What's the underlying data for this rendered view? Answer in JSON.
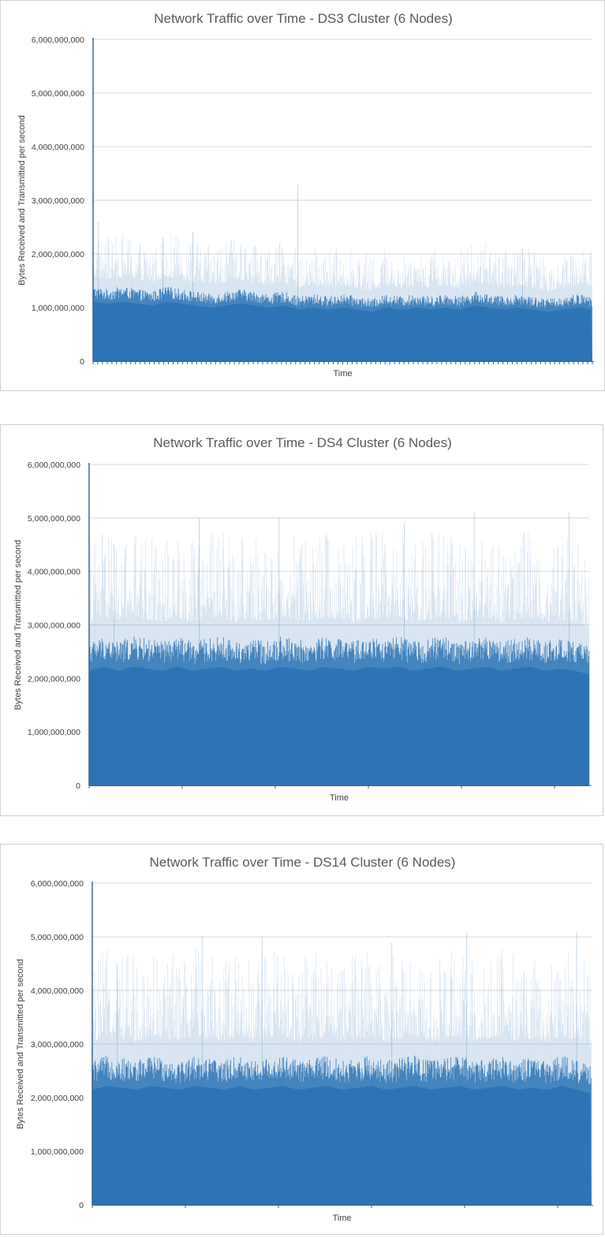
{
  "chart_data": [
    {
      "type": "area",
      "title": "Network Traffic over Time - DS3 Cluster (6 Nodes)",
      "xlabel": "Time",
      "ylabel": "Bytes Received and Transmitted per second",
      "ylim": [
        0,
        6000000000
      ],
      "yticks": [
        "0",
        "1,000,000,000",
        "2,000,000,000",
        "3,000,000,000",
        "4,000,000,000",
        "5,000,000,000",
        "6,000,000,000"
      ],
      "grid": true,
      "legend": "none",
      "color": "#2E75B6",
      "series": [
        {
          "values": [
            1500000000.0,
            1450000000.0,
            1500000000.0,
            1450000000.0,
            1400000000.0,
            1500000000.0,
            1450000000.0,
            1400000000.0,
            1350000000.0,
            1400000000.0,
            1450000000.0,
            1400000000.0,
            1350000000.0,
            1400000000.0,
            1300000000.0,
            1350000000.0,
            1300000000.0,
            1350000000.0,
            1300000000.0,
            1250000000.0,
            1350000000.0,
            1300000000.0,
            1350000000.0,
            1300000000.0,
            1350000000.0,
            1300000000.0,
            1400000000.0,
            1350000000.0,
            1300000000.0,
            1350000000.0,
            1300000000.0,
            1250000000.0,
            1300000000.0,
            1350000000.0,
            1300000000.0
          ],
          "peaks": [
            {
              "at": 0.41,
              "value": 3300000000.0
            },
            {
              "at": 0.2,
              "value": 2400000000.0
            },
            {
              "at": 0.14,
              "value": 2300000000.0
            },
            {
              "at": 0.01,
              "value": 2600000000.0
            },
            {
              "at": 0.86,
              "value": 2100000000.0
            }
          ]
        }
      ]
    },
    {
      "type": "area",
      "title": "Network Traffic over Time - DS4 Cluster (6 Nodes)",
      "xlabel": "Time",
      "ylabel": "Bytes Received and Transmitted per second",
      "ylim": [
        0,
        6000000000
      ],
      "yticks": [
        "0",
        "1,000,000,000",
        "2,000,000,000",
        "3,000,000,000",
        "4,000,000,000",
        "5,000,000,000",
        "6,000,000,000"
      ],
      "grid": true,
      "legend": "none",
      "color": "#2E75B6",
      "series": [
        {
          "values": [
            2900000000.0,
            3000000000.0,
            2900000000.0,
            3000000000.0,
            2950000000.0,
            2900000000.0,
            3000000000.0,
            2900000000.0,
            2950000000.0,
            3000000000.0,
            2900000000.0,
            2950000000.0,
            2900000000.0,
            3000000000.0,
            2950000000.0,
            2900000000.0,
            3000000000.0,
            2950000000.0,
            2900000000.0,
            3000000000.0,
            2950000000.0,
            3000000000.0,
            2900000000.0,
            2950000000.0,
            3000000000.0,
            2900000000.0,
            2950000000.0,
            3000000000.0,
            2900000000.0,
            2950000000.0,
            3000000000.0,
            2900000000.0,
            2950000000.0,
            2900000000.0,
            2800000000.0
          ],
          "peaks": [
            {
              "at": 0.22,
              "value": 5000000000.0
            },
            {
              "at": 0.38,
              "value": 5000000000.0
            },
            {
              "at": 0.77,
              "value": 5100000000.0
            },
            {
              "at": 0.96,
              "value": 5100000000.0
            },
            {
              "at": 0.63,
              "value": 4900000000.0
            },
            {
              "at": 0.05,
              "value": 4500000000.0
            }
          ]
        }
      ]
    },
    {
      "type": "area",
      "title": "Network Traffic over Time - DS14 Cluster (6 Nodes)",
      "xlabel": "Time",
      "ylabel": "Bytes Received and Transmitted per second",
      "ylim": [
        0,
        6000000000
      ],
      "yticks": [
        "0",
        "1,000,000,000",
        "2,000,000,000",
        "3,000,000,000",
        "4,000,000,000",
        "5,000,000,000",
        "6,000,000,000"
      ],
      "grid": true,
      "legend": "none",
      "color": "#2E75B6",
      "series": [
        {
          "values": [
            2900000000.0,
            3000000000.0,
            2950000000.0,
            2900000000.0,
            3000000000.0,
            2950000000.0,
            2900000000.0,
            3000000000.0,
            2950000000.0,
            2900000000.0,
            3000000000.0,
            2900000000.0,
            2950000000.0,
            3000000000.0,
            2900000000.0,
            2950000000.0,
            3000000000.0,
            2900000000.0,
            2950000000.0,
            3000000000.0,
            2900000000.0,
            2950000000.0,
            3000000000.0,
            2900000000.0,
            2950000000.0,
            3000000000.0,
            2900000000.0,
            2950000000.0,
            3000000000.0,
            2900000000.0,
            2950000000.0,
            2900000000.0,
            3000000000.0,
            2900000000.0,
            2800000000.0
          ],
          "peaks": [
            {
              "at": 0.22,
              "value": 5000000000.0
            },
            {
              "at": 0.34,
              "value": 5000000000.0
            },
            {
              "at": 0.75,
              "value": 5100000000.0
            },
            {
              "at": 0.97,
              "value": 5100000000.0
            },
            {
              "at": 0.6,
              "value": 4900000000.0
            },
            {
              "at": 0.05,
              "value": 4500000000.0
            }
          ]
        }
      ]
    }
  ]
}
